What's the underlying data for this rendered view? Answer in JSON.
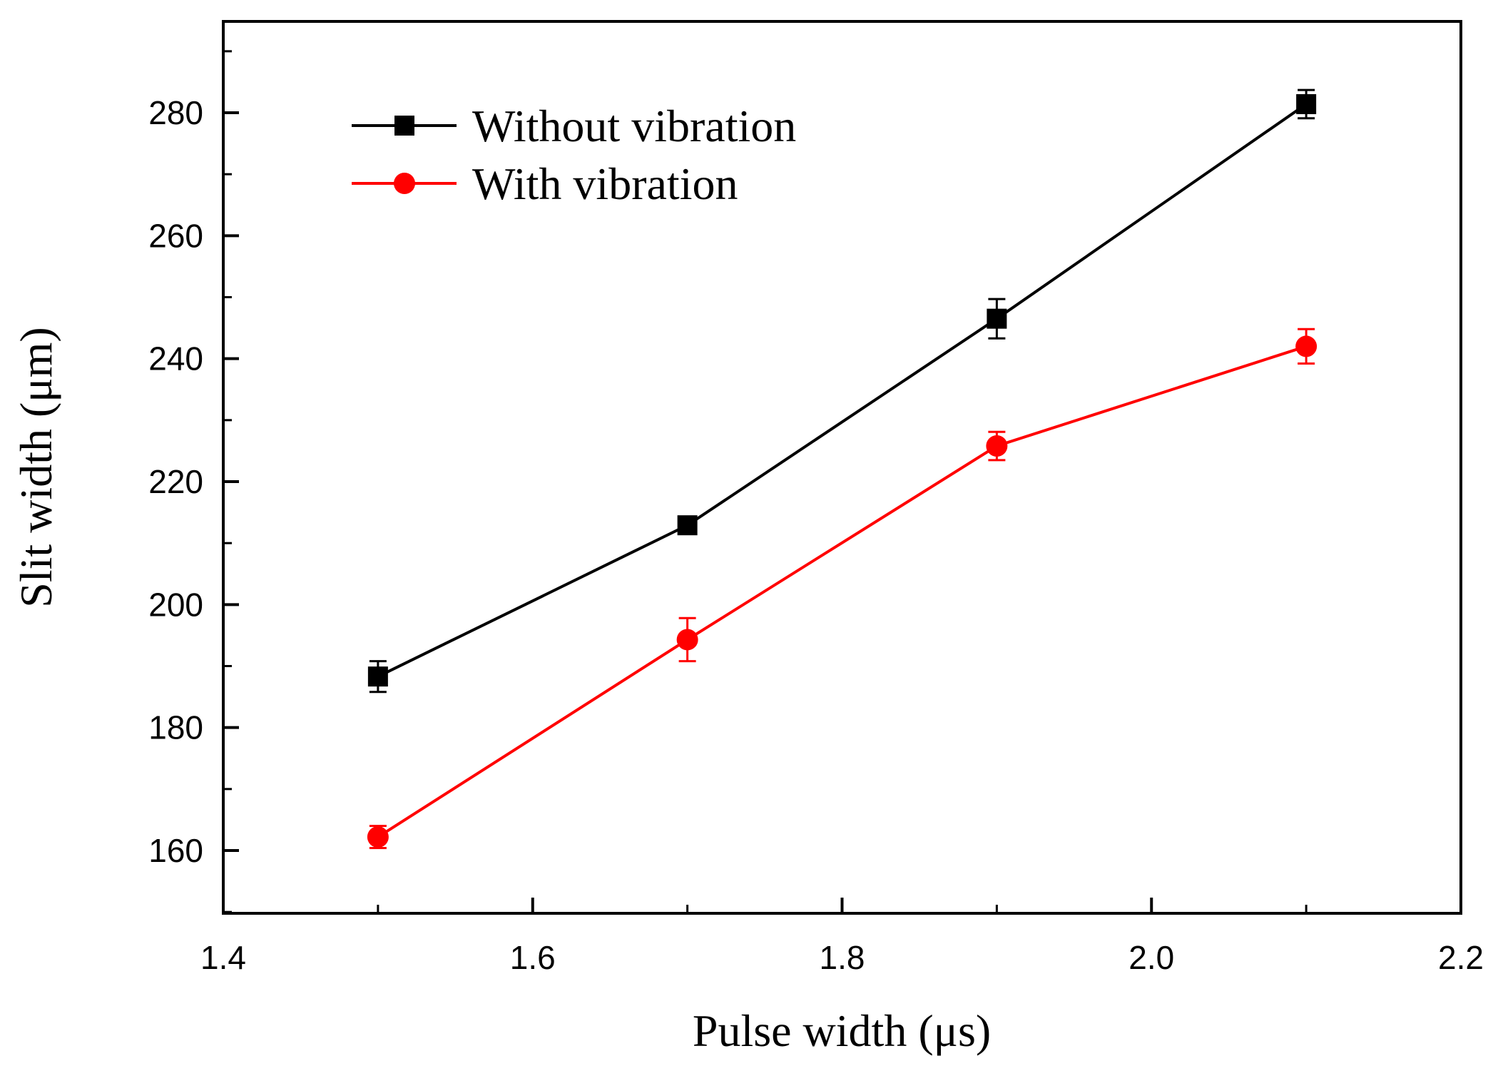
{
  "chart_data": {
    "type": "line",
    "title": "",
    "xlabel": "Pulse width (μs)",
    "ylabel": "Slit width (μm)",
    "xlim": [
      1.4,
      2.2
    ],
    "ylim": [
      150,
      295
    ],
    "xticks": [
      1.4,
      1.6,
      1.8,
      2.0,
      2.2
    ],
    "xtick_labels": [
      "1.4",
      "1.6",
      "1.8",
      "2.0",
      "2.2"
    ],
    "yticks": [
      160,
      180,
      200,
      220,
      240,
      260,
      280
    ],
    "ytick_labels": [
      "160",
      "180",
      "200",
      "220",
      "240",
      "260",
      "280"
    ],
    "x": [
      1.5,
      1.7,
      1.9,
      2.1
    ],
    "grid": false,
    "legend_position": "top-left",
    "series": [
      {
        "name": "Without vibration",
        "marker": "square",
        "color": "#000000",
        "values": [
          188.3,
          212.9,
          246.5,
          281.4
        ],
        "errors": [
          2.5,
          1.0,
          3.2,
          2.3
        ]
      },
      {
        "name": "With vibration",
        "marker": "circle",
        "color": "#ff0000",
        "values": [
          162.2,
          194.3,
          225.8,
          242.0
        ],
        "errors": [
          1.8,
          3.5,
          2.3,
          2.8
        ]
      }
    ]
  }
}
